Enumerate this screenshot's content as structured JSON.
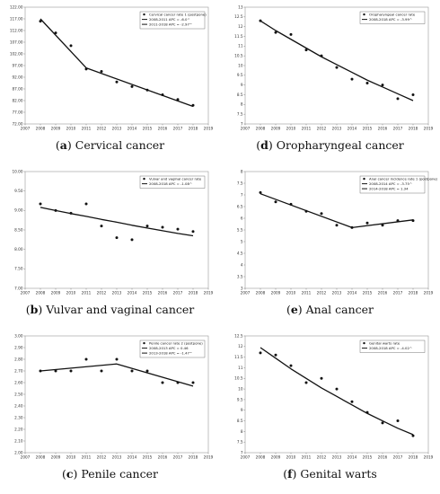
{
  "chart_data": [
    {
      "id": "a",
      "type": "scatter",
      "panel_label": "a",
      "caption": "Cervical cancer",
      "xticks": [
        "2007",
        "2008",
        "2009",
        "2010",
        "2011",
        "2012",
        "2013",
        "2014",
        "2015",
        "2016",
        "2017",
        "2018",
        "2019"
      ],
      "xlim": [
        2007,
        2019
      ],
      "yticks": [
        "72.00",
        "77.00",
        "82.00",
        "87.00",
        "92.00",
        "97.00",
        "102.00",
        "107.00",
        "112.00",
        "117.00",
        "122.00"
      ],
      "ylim": [
        72,
        122
      ],
      "points_x": [
        2008,
        2009,
        2010,
        2011,
        2012,
        2013,
        2014,
        2015,
        2016,
        2017,
        2018
      ],
      "points_y": [
        116,
        111,
        105.5,
        95.5,
        94.5,
        90,
        88,
        86.5,
        84.5,
        82.5,
        80
      ],
      "legend_position": "top-right",
      "series": [
        {
          "name": "Cervical cancer rate 1 (postpone)",
          "kind": "points"
        },
        {
          "name": "2008-2011 APC = -6.0^",
          "kind": "line",
          "x": [
            2008,
            2011
          ],
          "y": [
            117,
            96
          ]
        },
        {
          "name": "2011-2018 APC = -2.97^",
          "kind": "line",
          "x": [
            2011,
            2018
          ],
          "y": [
            96,
            79.5
          ]
        }
      ]
    },
    {
      "id": "d",
      "type": "scatter",
      "panel_label": "d",
      "caption": "Oropharyngeal cancer",
      "xticks": [
        "2007",
        "2008",
        "2009",
        "2010",
        "2011",
        "2012",
        "2013",
        "2014",
        "2015",
        "2016",
        "2017",
        "2018",
        "2019"
      ],
      "xlim": [
        2007,
        2019
      ],
      "yticks": [
        "7",
        "7.5",
        "8",
        "8.5",
        "9",
        "9.5",
        "10",
        "10.5",
        "11",
        "11.5",
        "12",
        "12.5",
        "13"
      ],
      "ylim": [
        7,
        13
      ],
      "points_x": [
        2008,
        2009,
        2010,
        2011,
        2012,
        2013,
        2014,
        2015,
        2016,
        2017,
        2018
      ],
      "points_y": [
        12.3,
        11.7,
        11.6,
        10.8,
        10.5,
        9.9,
        9.3,
        9.1,
        9.0,
        8.3,
        8.5
      ],
      "legend_position": "top-right",
      "series": [
        {
          "name": "Oropharyngeal cancer rate",
          "kind": "points"
        },
        {
          "name": "2008-2018 APC = -3.99^",
          "kind": "curve",
          "x": [
            2008,
            2009,
            2010,
            2011,
            2012,
            2013,
            2014,
            2015,
            2016,
            2017,
            2018
          ],
          "y": [
            12.3,
            11.8,
            11.35,
            10.9,
            10.45,
            10.05,
            9.65,
            9.25,
            8.9,
            8.55,
            8.2
          ]
        }
      ]
    },
    {
      "id": "b",
      "type": "scatter",
      "panel_label": "b",
      "caption": "Vulvar and vaginal cancer",
      "xticks": [
        "2007",
        "2008",
        "2009",
        "2010",
        "2011",
        "2012",
        "2013",
        "2014",
        "2015",
        "2016",
        "2017",
        "2018",
        "2019"
      ],
      "xlim": [
        2007,
        2019
      ],
      "yticks": [
        "7.00",
        "7.50",
        "8.00",
        "8.50",
        "9.00",
        "9.50",
        "10.00"
      ],
      "ylim": [
        7,
        10
      ],
      "points_x": [
        2008,
        2009,
        2010,
        2011,
        2012,
        2013,
        2014,
        2015,
        2016,
        2017,
        2018
      ],
      "points_y": [
        9.17,
        9.0,
        8.93,
        9.17,
        8.6,
        8.3,
        8.25,
        8.6,
        8.57,
        8.52,
        8.46
      ],
      "legend_position": "top-right",
      "series": [
        {
          "name": "Vulvar and vaginal cancer rate",
          "kind": "points"
        },
        {
          "name": "2008-2018 APC = -1.08^",
          "kind": "curve",
          "x": [
            2008,
            2009,
            2010,
            2011,
            2012,
            2013,
            2014,
            2015,
            2016,
            2017,
            2018
          ],
          "y": [
            9.08,
            9.0,
            8.92,
            8.85,
            8.77,
            8.7,
            8.62,
            8.55,
            8.48,
            8.41,
            8.35
          ]
        }
      ]
    },
    {
      "id": "e",
      "type": "scatter",
      "panel_label": "e",
      "caption": "Anal cancer",
      "xticks": [
        "2007",
        "2008",
        "2009",
        "2010",
        "2011",
        "2012",
        "2013",
        "2014",
        "2015",
        "2016",
        "2017",
        "2018",
        "2019"
      ],
      "xlim": [
        2007,
        2019
      ],
      "yticks": [
        "3",
        "3.5",
        "4",
        "4.5",
        "5",
        "5.5",
        "6",
        "6.5",
        "7",
        "7.5",
        "8"
      ],
      "ylim": [
        3,
        8
      ],
      "points_x": [
        2008,
        2009,
        2010,
        2011,
        2012,
        2013,
        2014,
        2015,
        2016,
        2017,
        2018
      ],
      "points_y": [
        7.1,
        6.7,
        6.6,
        6.3,
        6.2,
        5.7,
        5.6,
        5.8,
        5.7,
        5.9,
        5.9
      ],
      "legend_position": "top-right",
      "series": [
        {
          "name": "Anal cancer incidence rate 1 (postpone)",
          "kind": "points"
        },
        {
          "name": "2008-2014 APC = -3.75^",
          "kind": "line",
          "x": [
            2008,
            2014
          ],
          "y": [
            7.05,
            5.6
          ]
        },
        {
          "name": "2014-2018 APC = 1.34",
          "kind": "line",
          "x": [
            2014,
            2018
          ],
          "y": [
            5.6,
            5.93
          ]
        }
      ]
    },
    {
      "id": "c",
      "type": "scatter",
      "panel_label": "c",
      "caption": "Penile cancer",
      "xticks": [
        "2007",
        "2008",
        "2009",
        "2010",
        "2011",
        "2012",
        "2013",
        "2014",
        "2015",
        "2016",
        "2017",
        "2018",
        "2019"
      ],
      "xlim": [
        2007,
        2019
      ],
      "yticks": [
        "2.00",
        "2.10",
        "2.20",
        "2.30",
        "2.40",
        "2.50",
        "2.60",
        "2.70",
        "2.80",
        "2.90",
        "3.00"
      ],
      "ylim": [
        2,
        3
      ],
      "points_x": [
        2008,
        2009,
        2010,
        2011,
        2012,
        2013,
        2014,
        2015,
        2016,
        2017,
        2018
      ],
      "points_y": [
        2.7,
        2.7,
        2.7,
        2.8,
        2.7,
        2.8,
        2.7,
        2.7,
        2.6,
        2.6,
        2.6
      ],
      "legend_position": "top-right",
      "series": [
        {
          "name": "Penile cancer rate 2 (postpone)",
          "kind": "points"
        },
        {
          "name": "2008-2013 APC = 0.46",
          "kind": "line",
          "x": [
            2008,
            2013
          ],
          "y": [
            2.7,
            2.76
          ]
        },
        {
          "name": "2013-2018 APC = -1.47^",
          "kind": "line",
          "x": [
            2013,
            2018
          ],
          "y": [
            2.76,
            2.57
          ]
        }
      ]
    },
    {
      "id": "f",
      "type": "scatter",
      "panel_label": "f",
      "caption": "Genital warts",
      "xticks": [
        "2007",
        "2008",
        "2009",
        "2010",
        "2011",
        "2012",
        "2013",
        "2014",
        "2015",
        "2016",
        "2017",
        "2018",
        "2019"
      ],
      "xlim": [
        2007,
        2019
      ],
      "yticks": [
        "7",
        "7.5",
        "8",
        "8.5",
        "9",
        "9.5",
        "10",
        "10.5",
        "11",
        "11.5",
        "12",
        "12.5"
      ],
      "ylim": [
        7,
        12.5
      ],
      "points_x": [
        2008,
        2009,
        2010,
        2011,
        2012,
        2013,
        2014,
        2015,
        2016,
        2017,
        2018
      ],
      "points_y": [
        11.7,
        11.6,
        11.1,
        10.3,
        10.5,
        10.0,
        9.4,
        8.9,
        8.4,
        8.5,
        7.8
      ],
      "legend_position": "top-right",
      "series": [
        {
          "name": "Genital warts rate",
          "kind": "points"
        },
        {
          "name": "2008-2018 APC = -4.02^",
          "kind": "curve",
          "x": [
            2008,
            2009,
            2010,
            2011,
            2012,
            2013,
            2014,
            2015,
            2016,
            2017,
            2018
          ],
          "y": [
            11.95,
            11.45,
            10.95,
            10.5,
            10.05,
            9.65,
            9.25,
            8.85,
            8.5,
            8.15,
            7.85
          ]
        }
      ]
    }
  ]
}
